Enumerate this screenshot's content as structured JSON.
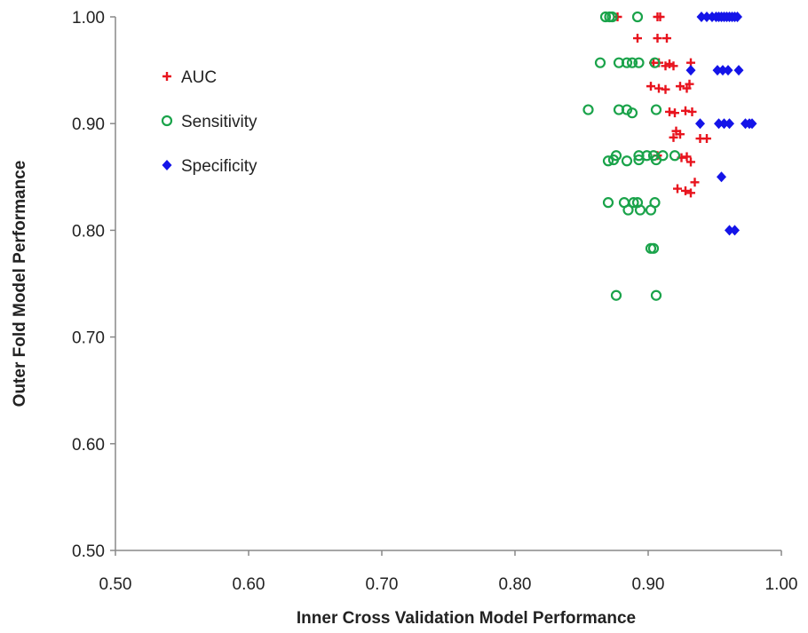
{
  "chart_data": {
    "type": "scatter",
    "title": "",
    "xlabel": "Inner Cross Validation Model Performance",
    "ylabel": "Outer Fold Model Performance",
    "xlim": [
      0.5,
      1.0
    ],
    "ylim": [
      0.5,
      1.0
    ],
    "x_ticks": [
      "0.50",
      "0.60",
      "0.70",
      "0.80",
      "0.90",
      "1.00"
    ],
    "y_ticks": [
      "0.50",
      "0.60",
      "0.70",
      "0.80",
      "0.90",
      "1.00"
    ],
    "grid": false,
    "legend_position": "top-left",
    "series": [
      {
        "name": "AUC",
        "marker": "plus",
        "color": "#e8141e",
        "points": [
          [
            0.877,
            1.0
          ],
          [
            0.907,
            1.0
          ],
          [
            0.909,
            1.0
          ],
          [
            0.892,
            0.98
          ],
          [
            0.907,
            0.98
          ],
          [
            0.914,
            0.98
          ],
          [
            0.904,
            0.957
          ],
          [
            0.908,
            0.957
          ],
          [
            0.913,
            0.954
          ],
          [
            0.916,
            0.956
          ],
          [
            0.919,
            0.954
          ],
          [
            0.932,
            0.957
          ],
          [
            0.902,
            0.935
          ],
          [
            0.908,
            0.933
          ],
          [
            0.913,
            0.932
          ],
          [
            0.924,
            0.935
          ],
          [
            0.929,
            0.933
          ],
          [
            0.931,
            0.937
          ],
          [
            0.916,
            0.911
          ],
          [
            0.92,
            0.91
          ],
          [
            0.928,
            0.912
          ],
          [
            0.933,
            0.911
          ],
          [
            0.919,
            0.887
          ],
          [
            0.921,
            0.893
          ],
          [
            0.924,
            0.89
          ],
          [
            0.939,
            0.886
          ],
          [
            0.944,
            0.886
          ],
          [
            0.907,
            0.87
          ],
          [
            0.925,
            0.868
          ],
          [
            0.929,
            0.869
          ],
          [
            0.932,
            0.864
          ],
          [
            0.922,
            0.839
          ],
          [
            0.928,
            0.837
          ],
          [
            0.932,
            0.835
          ],
          [
            0.935,
            0.845
          ]
        ]
      },
      {
        "name": "Sensitivity",
        "marker": "circle",
        "color": "#1aa34a",
        "points": [
          [
            0.868,
            1.0
          ],
          [
            0.871,
            1.0
          ],
          [
            0.873,
            1.0
          ],
          [
            0.892,
            1.0
          ],
          [
            0.864,
            0.957
          ],
          [
            0.878,
            0.957
          ],
          [
            0.884,
            0.957
          ],
          [
            0.888,
            0.957
          ],
          [
            0.893,
            0.957
          ],
          [
            0.905,
            0.957
          ],
          [
            0.855,
            0.913
          ],
          [
            0.878,
            0.913
          ],
          [
            0.884,
            0.913
          ],
          [
            0.888,
            0.91
          ],
          [
            0.906,
            0.913
          ],
          [
            0.876,
            0.87
          ],
          [
            0.893,
            0.87
          ],
          [
            0.899,
            0.87
          ],
          [
            0.904,
            0.87
          ],
          [
            0.911,
            0.87
          ],
          [
            0.92,
            0.87
          ],
          [
            0.87,
            0.865
          ],
          [
            0.874,
            0.866
          ],
          [
            0.884,
            0.865
          ],
          [
            0.893,
            0.866
          ],
          [
            0.906,
            0.866
          ],
          [
            0.87,
            0.826
          ],
          [
            0.882,
            0.826
          ],
          [
            0.889,
            0.826
          ],
          [
            0.892,
            0.826
          ],
          [
            0.905,
            0.826
          ],
          [
            0.885,
            0.819
          ],
          [
            0.894,
            0.819
          ],
          [
            0.902,
            0.819
          ],
          [
            0.902,
            0.783
          ],
          [
            0.904,
            0.783
          ],
          [
            0.876,
            0.739
          ],
          [
            0.906,
            0.739
          ]
        ]
      },
      {
        "name": "Specificity",
        "marker": "diamond",
        "color": "#1414e8",
        "points": [
          [
            0.94,
            1.0
          ],
          [
            0.944,
            1.0
          ],
          [
            0.948,
            1.0
          ],
          [
            0.951,
            1.0
          ],
          [
            0.953,
            1.0
          ],
          [
            0.955,
            1.0
          ],
          [
            0.957,
            1.0
          ],
          [
            0.959,
            1.0
          ],
          [
            0.961,
            1.0
          ],
          [
            0.963,
            1.0
          ],
          [
            0.965,
            1.0
          ],
          [
            0.967,
            1.0
          ],
          [
            0.932,
            0.95
          ],
          [
            0.952,
            0.95
          ],
          [
            0.956,
            0.95
          ],
          [
            0.96,
            0.95
          ],
          [
            0.968,
            0.95
          ],
          [
            0.939,
            0.9
          ],
          [
            0.953,
            0.9
          ],
          [
            0.957,
            0.9
          ],
          [
            0.961,
            0.9
          ],
          [
            0.973,
            0.9
          ],
          [
            0.976,
            0.9
          ],
          [
            0.978,
            0.9
          ],
          [
            0.955,
            0.85
          ],
          [
            0.961,
            0.8
          ],
          [
            0.965,
            0.8
          ]
        ]
      }
    ]
  }
}
